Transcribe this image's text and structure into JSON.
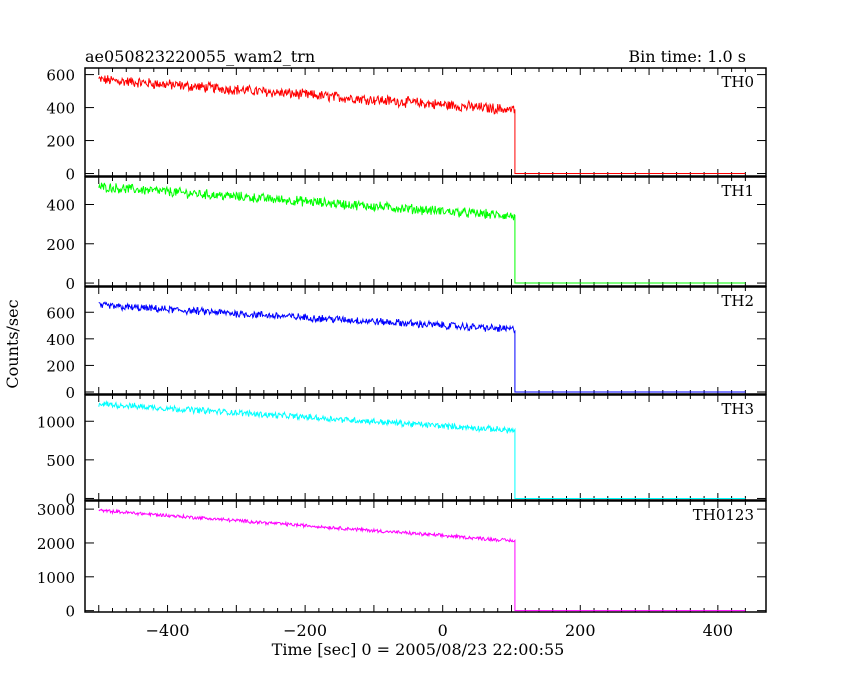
{
  "chart_data": {
    "type": "line",
    "title": "ae050823220055_wam2_trn",
    "subtitle": "Bin time: 1.0 s",
    "xlabel": "Time [sec] 0 = 2005/08/23 22:00:55",
    "ylabel": "Counts/sec",
    "xlim": [
      -520,
      470
    ],
    "xticks": [
      -400,
      -200,
      0,
      200,
      400
    ],
    "xtick_labels": [
      "−400",
      "−200",
      "0",
      "200",
      "400"
    ],
    "drop_time": 105,
    "start_time": -500,
    "end_time": 440,
    "grid": false,
    "panels": [
      {
        "name": "TH0",
        "color": "#ff0000",
        "ylim": [
          -15,
          640
        ],
        "yticks": [
          0,
          200,
          400,
          600
        ],
        "start_level": 570,
        "end_level": 385,
        "noise": 28,
        "after_level": 0
      },
      {
        "name": "TH1",
        "color": "#00ff00",
        "ylim": [
          -15,
          540
        ],
        "yticks": [
          0,
          200,
          400
        ],
        "start_level": 490,
        "end_level": 340,
        "noise": 22,
        "after_level": 0
      },
      {
        "name": "TH2",
        "color": "#0000ff",
        "ylim": [
          -15,
          790
        ],
        "yticks": [
          0,
          200,
          400,
          600
        ],
        "start_level": 650,
        "end_level": 470,
        "noise": 25,
        "after_level": 0
      },
      {
        "name": "TH3",
        "color": "#00ffff",
        "ylim": [
          -20,
          1340
        ],
        "yticks": [
          0,
          500,
          1000
        ],
        "start_level": 1225,
        "end_level": 880,
        "noise": 35,
        "after_level": 0
      },
      {
        "name": "TH0123",
        "color": "#ff00ff",
        "ylim": [
          -40,
          3240
        ],
        "yticks": [
          0,
          1000,
          2000,
          3000
        ],
        "start_level": 2960,
        "end_level": 2060,
        "noise": 45,
        "after_level": 0
      }
    ]
  }
}
